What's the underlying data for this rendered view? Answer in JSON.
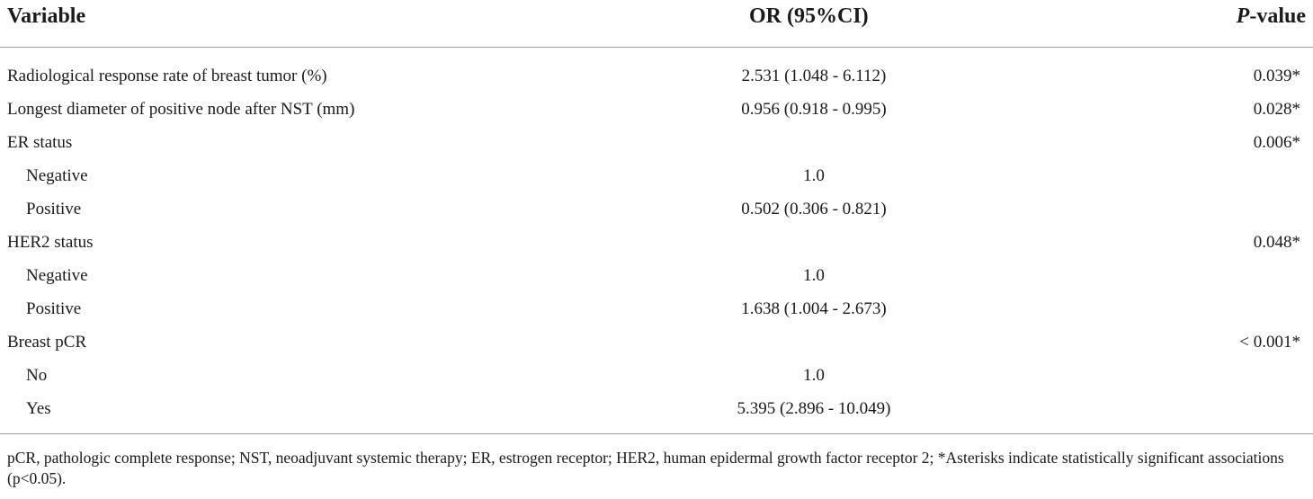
{
  "table": {
    "headers": {
      "variable": "Variable",
      "or_ci": "OR (95%CI)",
      "p_italic": "P",
      "p_rest": "-value"
    },
    "rows": [
      {
        "variable": "Radiological response rate of breast tumor (%)",
        "or": "2.531 (1.048 - 6.112)",
        "p": "0.039*",
        "indent": false
      },
      {
        "variable": "Longest diameter of positive node after NST (mm)",
        "or": "0.956 (0.918 - 0.995)",
        "p": "0.028*",
        "indent": false
      },
      {
        "variable": "ER status",
        "or": "",
        "p": "0.006*",
        "indent": false
      },
      {
        "variable": "Negative",
        "or": "1.0",
        "p": "",
        "indent": true
      },
      {
        "variable": "Positive",
        "or": "0.502 (0.306 - 0.821)",
        "p": "",
        "indent": true
      },
      {
        "variable": "HER2 status",
        "or": "",
        "p": "0.048*",
        "indent": false
      },
      {
        "variable": "Negative",
        "or": "1.0",
        "p": "",
        "indent": true
      },
      {
        "variable": "Positive",
        "or": "1.638 (1.004 - 2.673)",
        "p": "",
        "indent": true
      },
      {
        "variable": "Breast pCR",
        "or": "",
        "p": "< 0.001*",
        "indent": false
      },
      {
        "variable": "No",
        "or": "1.0",
        "p": "",
        "indent": true
      },
      {
        "variable": "Yes",
        "or": "5.395 (2.896 - 10.049)",
        "p": "",
        "indent": true
      }
    ]
  },
  "footnote": "pCR, pathologic complete response; NST, neoadjuvant systemic therapy; ER, estrogen receptor; HER2, human epidermal growth factor receptor 2; *Asterisks indicate statistically significant associations (p<0.05)."
}
